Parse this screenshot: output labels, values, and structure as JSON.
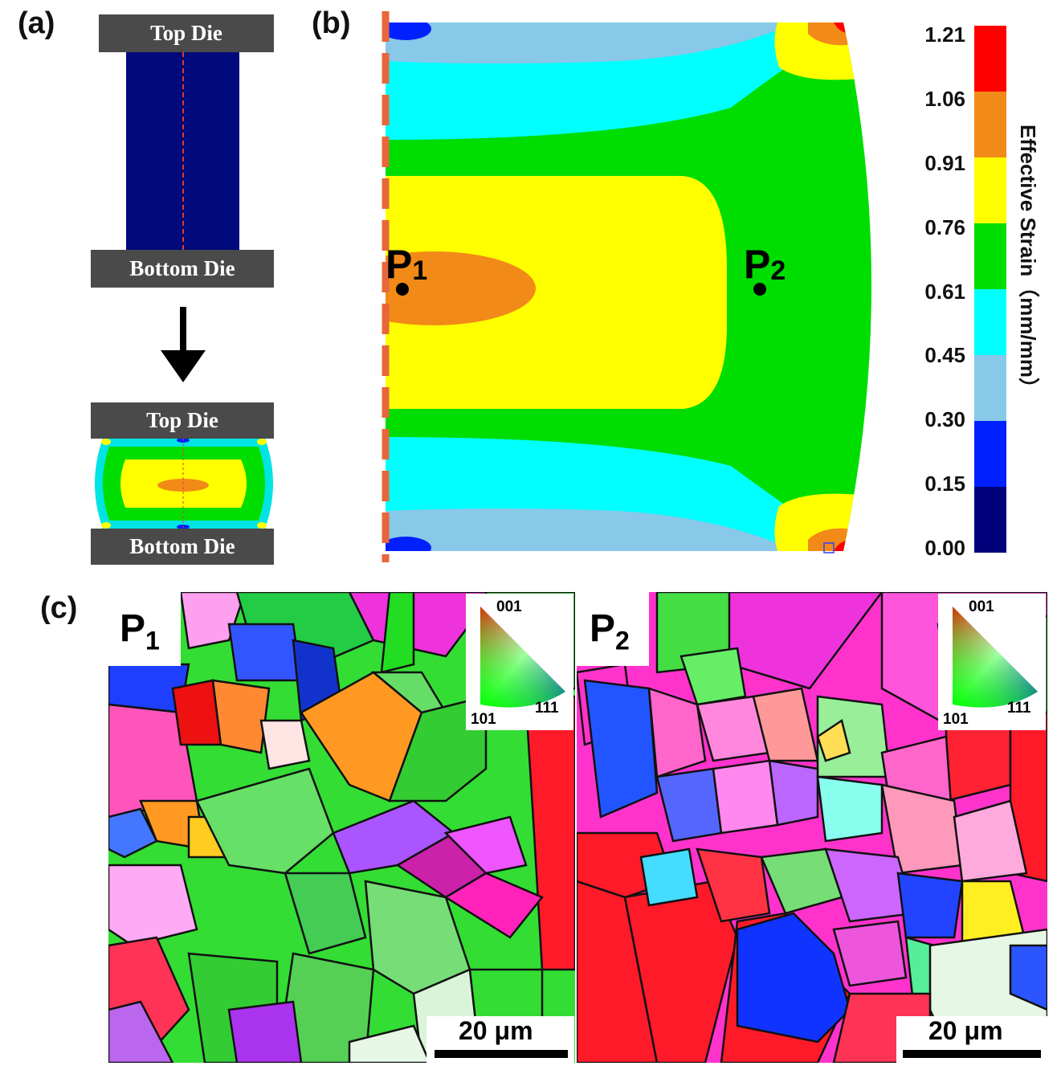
{
  "panels": {
    "a": {
      "label": "(a)",
      "top_die": "Top Die",
      "bottom_die": "Bottom Die"
    },
    "b": {
      "label": "(b)",
      "points": [
        {
          "name": "P",
          "sub": "1"
        },
        {
          "name": "P",
          "sub": "2"
        }
      ],
      "colorbar": {
        "title": "Effective Strain（mm/mm）",
        "ticks": [
          "1.21",
          "1.06",
          "0.91",
          "0.76",
          "0.61",
          "0.45",
          "0.30",
          "0.15",
          "0.00"
        ],
        "colors": [
          "#ff0000",
          "#f28a17",
          "#ffff00",
          "#00dd00",
          "#00ffff",
          "#88c8e8",
          "#0020ff",
          "#00007a"
        ]
      }
    },
    "c": {
      "label": "(c)",
      "maps": [
        {
          "tag": "P",
          "sub": "1",
          "scale_bar": "20 μm"
        },
        {
          "tag": "P",
          "sub": "2",
          "scale_bar": "20 μm"
        }
      ],
      "ipf_legend": {
        "top": "001",
        "left": "101",
        "right": "111"
      }
    }
  }
}
